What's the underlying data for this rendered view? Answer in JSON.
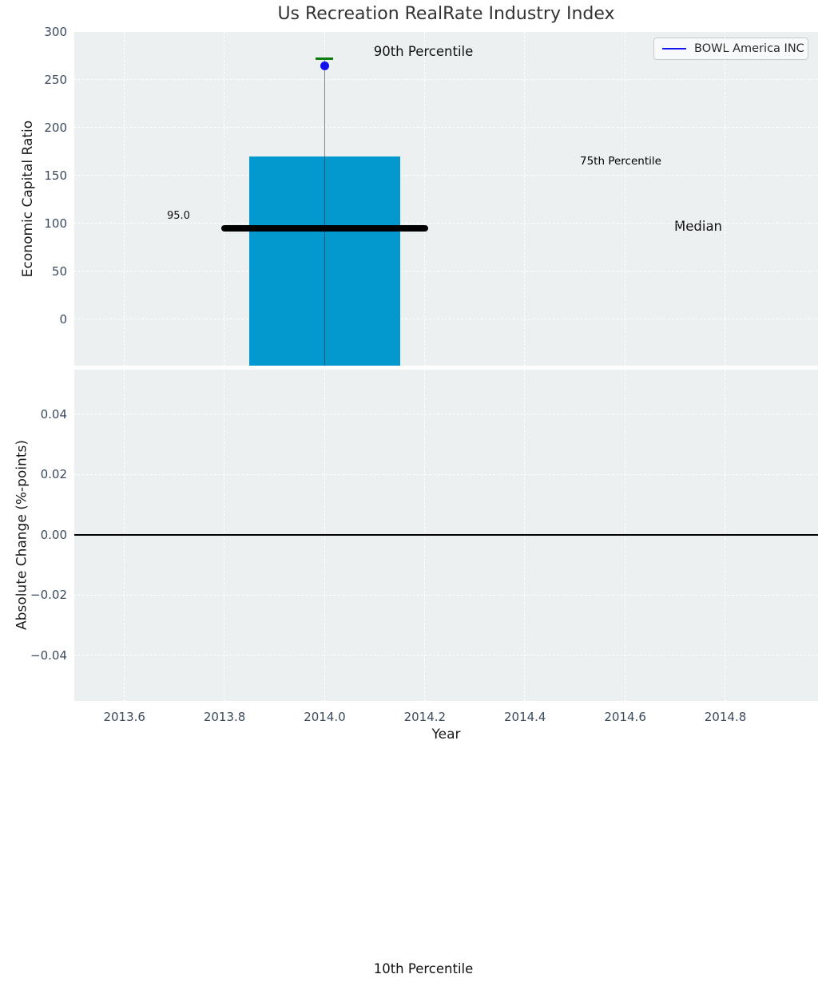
{
  "page": {
    "background": "#ffffff"
  },
  "chart_data": {
    "type": "bar",
    "title": "Us Recreation RealRate Industry Index",
    "xlabel": "Year",
    "xlim": [
      2013.5,
      2014.985
    ],
    "x_ticks": [
      {
        "v": 2013.6,
        "label": "2013.6"
      },
      {
        "v": 2013.8,
        "label": "2013.8"
      },
      {
        "v": 2014.0,
        "label": "2014.0"
      },
      {
        "v": 2014.2,
        "label": "2014.2"
      },
      {
        "v": 2014.4,
        "label": "2014.4"
      },
      {
        "v": 2014.6,
        "label": "2014.6"
      },
      {
        "v": 2014.8,
        "label": "2014.8"
      }
    ],
    "grid": true,
    "plot_background": "#ecf0f1",
    "gridline_color": "#ffffff",
    "tick_label_color": "#3b4a5c",
    "panels": [
      {
        "name": "economic_capital_ratio",
        "ylabel": "Economic Capital Ratio",
        "ylim": [
          -48.3,
          300
        ],
        "y_ticks": [
          {
            "v": 300,
            "label": "300"
          },
          {
            "v": 250,
            "label": "250"
          },
          {
            "v": 200,
            "label": "200"
          },
          {
            "v": 150,
            "label": "150"
          },
          {
            "v": 100,
            "label": "100"
          },
          {
            "v": 50,
            "label": "50"
          },
          {
            "v": 0,
            "label": "0"
          }
        ],
        "bar": {
          "x_from": 2013.85,
          "x_to": 2014.15,
          "top_value": 170,
          "bottom_value": -48.3,
          "clipped_below": true,
          "color": "#0499ce"
        },
        "median_line": {
          "value": 95.0,
          "label": "95.0",
          "x_from": 2013.8,
          "x_to": 2014.2,
          "color": "#000000"
        },
        "p90_marker": {
          "value": 272,
          "x": 2014.0,
          "color": "#0a7d0a"
        },
        "company_point": {
          "value": 265,
          "x": 2014.0,
          "color": "#1212ef"
        },
        "whisker": {
          "x": 2014.0,
          "top_value": 272,
          "bottom": "axis-bottom",
          "color": "rgba(40,40,40,0.55)"
        },
        "annotations": {
          "p90": {
            "text": "90th Percentile",
            "color": "#111111"
          },
          "p75": {
            "text": "75th Percentile",
            "color": "#1a9cd2"
          },
          "median": {
            "text": "Median",
            "color": "#111111"
          }
        },
        "legend": {
          "label": "BOWL America INC",
          "line_color": "#1414f0",
          "position": "upper right"
        }
      },
      {
        "name": "absolute_change",
        "ylabel": "Absolute Change (%-points)",
        "ylim": [
          -0.0551,
          0.0548
        ],
        "y_ticks": [
          {
            "v": 0.04,
            "label": "0.04"
          },
          {
            "v": 0.02,
            "label": "0.02"
          },
          {
            "v": 0.0,
            "label": "0.00"
          },
          {
            "v": -0.02,
            "label": "−0.02"
          },
          {
            "v": -0.04,
            "label": "−0.04"
          }
        ],
        "zero_line": {
          "value": 0.0,
          "color": "#000000"
        }
      }
    ],
    "outside_annotation": {
      "text": "10th Percentile",
      "color": "#111111"
    }
  }
}
